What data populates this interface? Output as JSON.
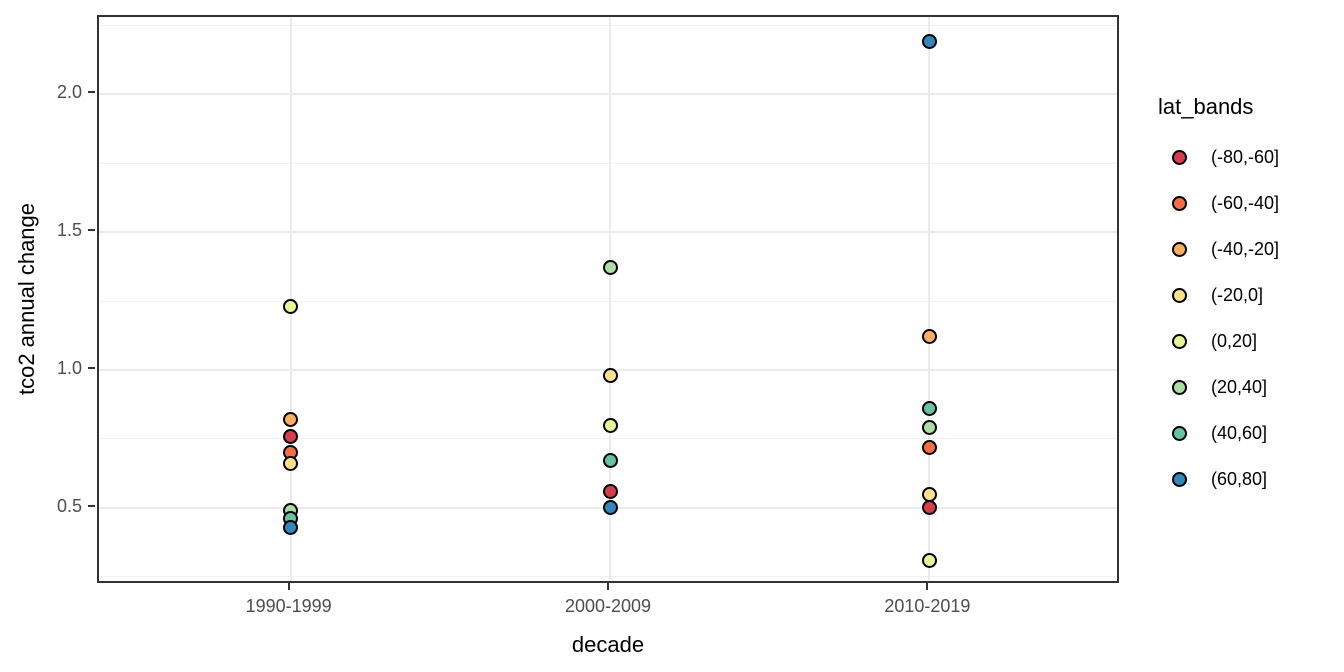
{
  "chart_data": {
    "type": "scatter",
    "title": "",
    "xlabel": "decade",
    "ylabel": "tco2 annual change",
    "legend_title": "lat_bands",
    "legend_position": "right",
    "grid": true,
    "categories": [
      "1990-1999",
      "2000-2009",
      "2010-2019"
    ],
    "y_ticks": [
      0.5,
      1.0,
      1.5,
      2.0
    ],
    "y_tick_labels": [
      "0.5",
      "1.0",
      "1.5",
      "2.0"
    ],
    "y_minor_ticks": [
      0.25,
      0.75,
      1.25,
      1.75,
      2.25
    ],
    "ylim": [
      0.22,
      2.28
    ],
    "point_outline_color": "#000000",
    "series": [
      {
        "name": "(-80,-60]",
        "color": "#d53e4f",
        "values": [
          0.76,
          0.56,
          0.5
        ]
      },
      {
        "name": "(-60,-40]",
        "color": "#f46d43",
        "values": [
          0.7,
          null,
          0.72
        ]
      },
      {
        "name": "(-40,-20]",
        "color": "#fdae61",
        "values": [
          0.82,
          null,
          1.12
        ]
      },
      {
        "name": "(-20,0]",
        "color": "#fee08b",
        "values": [
          0.66,
          0.98,
          0.55
        ]
      },
      {
        "name": "(0,20]",
        "color": "#e6f598",
        "values": [
          1.23,
          0.8,
          0.31
        ]
      },
      {
        "name": "(20,40]",
        "color": "#abdda4",
        "values": [
          0.49,
          1.37,
          0.79
        ]
      },
      {
        "name": "(40,60]",
        "color": "#66c2a5",
        "values": [
          0.46,
          0.67,
          0.86
        ]
      },
      {
        "name": "(60,80]",
        "color": "#3288bd",
        "values": [
          0.43,
          0.5,
          2.19
        ]
      }
    ]
  }
}
